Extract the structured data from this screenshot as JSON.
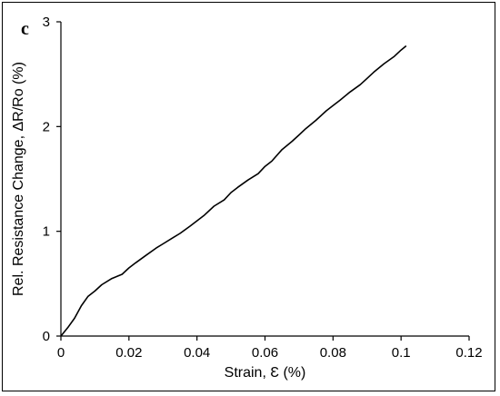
{
  "panel_label": "c",
  "chart_data": {
    "type": "line",
    "title": "",
    "xlabel": "Strain, Ɛ (%)",
    "ylabel": "Rel. Resistance Change, ΔR/Ro (%)",
    "xlim": [
      0,
      0.12
    ],
    "ylim": [
      0,
      3
    ],
    "x_ticks": [
      "0",
      "0.02",
      "0.04",
      "0.06",
      "0.08",
      "0.1",
      "0.12"
    ],
    "y_ticks": [
      "0",
      "1",
      "2",
      "3"
    ],
    "grid": false,
    "legend": "none",
    "line_color": "#000000",
    "series": [
      {
        "x": [
          0,
          0.002,
          0.004,
          0.006,
          0.008,
          0.01,
          0.012,
          0.015,
          0.018,
          0.02,
          0.022,
          0.025,
          0.028,
          0.03,
          0.033,
          0.035,
          0.038,
          0.04,
          0.042,
          0.045,
          0.048,
          0.05,
          0.052,
          0.055,
          0.058,
          0.06,
          0.062,
          0.065,
          0.068,
          0.07,
          0.072,
          0.075,
          0.078,
          0.08,
          0.082,
          0.085,
          0.088,
          0.09,
          0.092,
          0.095,
          0.098,
          0.1,
          0.1015
        ],
        "y": [
          0,
          0.08,
          0.17,
          0.29,
          0.38,
          0.43,
          0.49,
          0.55,
          0.59,
          0.65,
          0.7,
          0.77,
          0.84,
          0.88,
          0.94,
          0.98,
          1.05,
          1.1,
          1.15,
          1.24,
          1.3,
          1.37,
          1.42,
          1.49,
          1.55,
          1.62,
          1.67,
          1.78,
          1.86,
          1.92,
          1.98,
          2.06,
          2.15,
          2.2,
          2.25,
          2.33,
          2.4,
          2.46,
          2.52,
          2.6,
          2.67,
          2.73,
          2.77
        ]
      }
    ]
  }
}
